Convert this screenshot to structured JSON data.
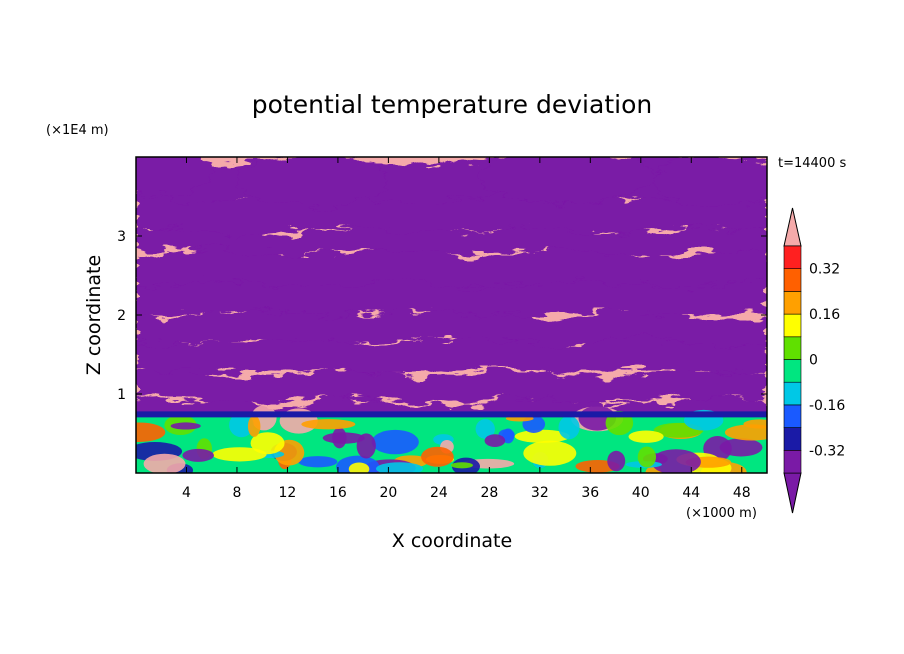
{
  "chart_data": {
    "type": "heatmap",
    "title": "potential temperature deviation",
    "xlabel": "X coordinate",
    "ylabel": "Z coordinate",
    "x_unit": "(×1000 m)",
    "y_unit": "(×1E4 m)",
    "time_label": "t=14400 s",
    "xlim": [
      0,
      50
    ],
    "ylim": [
      0,
      4
    ],
    "x_ticks": [
      4,
      8,
      12,
      16,
      20,
      24,
      28,
      32,
      36,
      40,
      44,
      48
    ],
    "y_ticks": [
      1,
      2,
      3
    ],
    "colorbar": {
      "levels": [
        -0.4,
        -0.32,
        -0.24,
        -0.16,
        -0.08,
        0,
        0.08,
        0.16,
        0.24,
        0.32,
        0.4
      ],
      "labels": [
        "0.32",
        "0.16",
        "0",
        "-0.16",
        "-0.32"
      ],
      "label_values": [
        0.32,
        0.16,
        0,
        -0.16,
        -0.32
      ],
      "under_color": "#7a1aa6",
      "over_color": "#f5aaaa",
      "colors": [
        "#7a1aa6",
        "#1a1aa6",
        "#1a5aff",
        "#00c8e6",
        "#00e680",
        "#60e000",
        "#ffff00",
        "#ffa000",
        "#ff6000",
        "#ff2020"
      ]
    },
    "grid": false,
    "colors": {
      "positive": "#f5aaaa",
      "negative": "#7a1aa6"
    }
  }
}
